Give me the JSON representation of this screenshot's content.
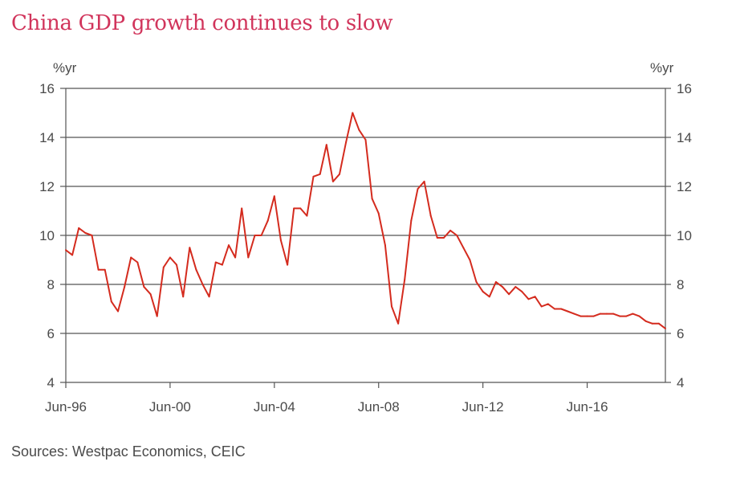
{
  "title": "China GDP growth continues to slow",
  "source": "Sources: Westpac Economics, CEIC",
  "colors": {
    "title": "#d1345b",
    "series": "#d42b1e",
    "grid": "#555555"
  },
  "chart_data": {
    "type": "line",
    "title": "China GDP growth continues to slow",
    "y_unit_left": "%yr",
    "y_unit_right": "%yr",
    "ylim": [
      4,
      16
    ],
    "y_ticks": [
      4,
      6,
      8,
      10,
      12,
      14,
      16
    ],
    "x_range": [
      "Jun-96",
      "Jun-19"
    ],
    "x_ticks": [
      "Jun-96",
      "Jun-00",
      "Jun-04",
      "Jun-08",
      "Jun-12",
      "Jun-16"
    ],
    "grid": true,
    "series": [
      {
        "name": "",
        "frequency": "quarterly",
        "x": [
          "Jun-96",
          "Sep-96",
          "Dec-96",
          "Mar-97",
          "Jun-97",
          "Sep-97",
          "Dec-97",
          "Mar-98",
          "Jun-98",
          "Sep-98",
          "Dec-98",
          "Mar-99",
          "Jun-99",
          "Sep-99",
          "Dec-99",
          "Mar-00",
          "Jun-00",
          "Sep-00",
          "Dec-00",
          "Mar-01",
          "Jun-01",
          "Sep-01",
          "Dec-01",
          "Mar-02",
          "Jun-02",
          "Sep-02",
          "Dec-02",
          "Mar-03",
          "Jun-03",
          "Sep-03",
          "Dec-03",
          "Mar-04",
          "Jun-04",
          "Sep-04",
          "Dec-04",
          "Mar-05",
          "Jun-05",
          "Sep-05",
          "Dec-05",
          "Mar-06",
          "Jun-06",
          "Sep-06",
          "Dec-06",
          "Mar-07",
          "Jun-07",
          "Sep-07",
          "Dec-07",
          "Mar-08",
          "Jun-08",
          "Sep-08",
          "Dec-08",
          "Mar-09",
          "Jun-09",
          "Sep-09",
          "Dec-09",
          "Mar-10",
          "Jun-10",
          "Sep-10",
          "Dec-10",
          "Mar-11",
          "Jun-11",
          "Sep-11",
          "Dec-11",
          "Mar-12",
          "Jun-12",
          "Sep-12",
          "Dec-12",
          "Mar-13",
          "Jun-13",
          "Sep-13",
          "Dec-13",
          "Mar-14",
          "Jun-14",
          "Sep-14",
          "Dec-14",
          "Mar-15",
          "Jun-15",
          "Sep-15",
          "Dec-15",
          "Mar-16",
          "Jun-16",
          "Sep-16",
          "Dec-16",
          "Mar-17",
          "Jun-17",
          "Sep-17",
          "Dec-17",
          "Mar-18",
          "Jun-18",
          "Sep-18",
          "Dec-18",
          "Mar-19",
          "Jun-19"
        ],
        "values": [
          9.4,
          9.2,
          10.3,
          10.1,
          10.0,
          8.6,
          8.6,
          7.3,
          6.9,
          7.9,
          9.1,
          8.9,
          7.9,
          7.6,
          6.7,
          8.7,
          9.1,
          8.8,
          7.5,
          9.5,
          8.6,
          8.0,
          7.5,
          8.9,
          8.8,
          9.6,
          9.1,
          11.1,
          9.1,
          10.0,
          10.0,
          10.6,
          11.6,
          9.8,
          8.8,
          11.1,
          11.1,
          10.8,
          12.4,
          12.5,
          13.7,
          12.2,
          12.5,
          13.8,
          15.0,
          14.3,
          13.9,
          11.5,
          10.9,
          9.6,
          7.1,
          6.4,
          8.2,
          10.6,
          11.9,
          12.2,
          10.8,
          9.9,
          9.9,
          10.2,
          10.0,
          9.5,
          9.0,
          8.1,
          7.7,
          7.5,
          8.1,
          7.9,
          7.6,
          7.9,
          7.7,
          7.4,
          7.5,
          7.1,
          7.2,
          7.0,
          7.0,
          6.9,
          6.8,
          6.7,
          6.7,
          6.7,
          6.8,
          6.8,
          6.8,
          6.7,
          6.7,
          6.8,
          6.7,
          6.5,
          6.4,
          6.4,
          6.2
        ]
      }
    ]
  }
}
